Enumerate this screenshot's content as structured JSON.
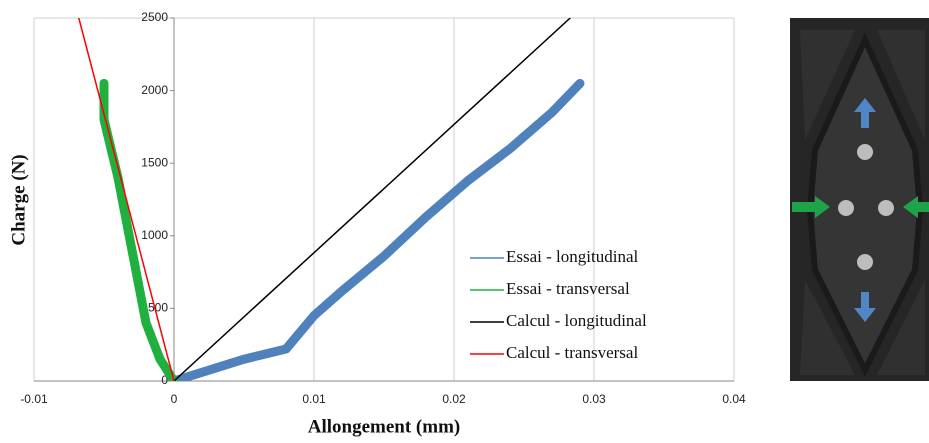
{
  "chart_data": {
    "type": "line",
    "x_label": "Allongement (mm)",
    "y_label": "Charge (N)",
    "xlim": [
      -0.01,
      0.04
    ],
    "xticks": [
      -0.01,
      0,
      0.01,
      0.02,
      0.03,
      0.04
    ],
    "ylim": [
      0,
      2500
    ],
    "yticks": [
      0,
      500,
      1000,
      1500,
      2000,
      2500
    ],
    "grid": true,
    "legend": "lower right",
    "series": [
      {
        "name": "Essai - longitudinal",
        "color": "#4f81bd",
        "x": [
          0,
          0.002,
          0.005,
          0.008,
          0.01,
          0.012,
          0.015,
          0.018,
          0.021,
          0.024,
          0.027,
          0.029
        ],
        "values": [
          0,
          60,
          150,
          220,
          450,
          620,
          860,
          1130,
          1380,
          1600,
          1850,
          2050
        ]
      },
      {
        "name": "Essai - transversal",
        "color": "#1fb040",
        "x": [
          0,
          -0.001,
          -0.002,
          -0.003,
          -0.004,
          -0.005,
          -0.005
        ],
        "values": [
          0,
          150,
          400,
          900,
          1400,
          1800,
          2050
        ]
      },
      {
        "name": "Calcul - longitudinal",
        "color": "#000000",
        "x": [
          0,
          0.0283
        ],
        "values": [
          0,
          2500
        ]
      },
      {
        "name": "Calcul - transversal",
        "color": "#ff0000",
        "x": [
          0,
          -0.0068
        ],
        "values": [
          0,
          2500
        ]
      }
    ]
  }
}
